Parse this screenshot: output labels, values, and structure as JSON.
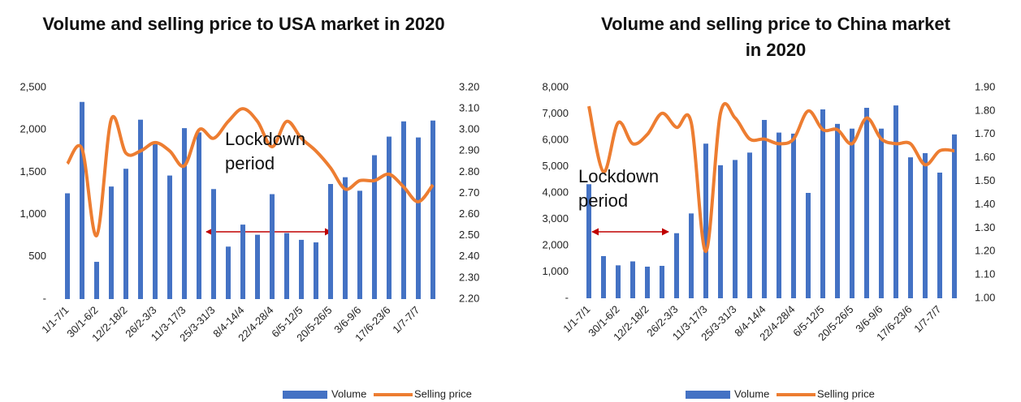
{
  "chart_data": [
    {
      "type": "bar_line",
      "title": "Volume and selling price to USA market in 2020",
      "annotation": "Lockdown period",
      "categories": [
        "1/1-7/1",
        null,
        "30/1-6/2",
        null,
        "12/2-18/2",
        null,
        "26/2-3/3",
        null,
        "11/3-17/3",
        null,
        "25/3-31/3",
        null,
        "8/4-14/4",
        null,
        "22/4-28/4",
        null,
        "6/5-12/5",
        null,
        "20/5-26/5",
        null,
        "3/6-9/6",
        null,
        "17/6-23/6",
        null,
        "1/7-7/7",
        null
      ],
      "series": [
        {
          "name": "Volume",
          "color": "#4472c4",
          "values": [
            1250,
            2330,
            440,
            1330,
            1540,
            2120,
            1830,
            1460,
            2020,
            1970,
            1300,
            620,
            880,
            760,
            1240,
            780,
            700,
            670,
            1360,
            1440,
            1280,
            1700,
            1920,
            2100,
            1910,
            2110
          ]
        },
        {
          "name": "Selling price",
          "color": "#ed7d31",
          "axis": "y2",
          "values": [
            2.84,
            2.91,
            2.5,
            3.05,
            2.89,
            2.9,
            2.94,
            2.9,
            2.83,
            3.0,
            2.96,
            3.04,
            3.1,
            3.04,
            2.92,
            3.04,
            2.96,
            2.9,
            2.82,
            2.72,
            2.76,
            2.76,
            2.79,
            2.73,
            2.66,
            2.74
          ]
        }
      ],
      "ylim": [
        0,
        2500
      ],
      "yticks": [
        {
          "value": 0,
          "label": "-"
        },
        500,
        {
          "value": 1000,
          "label": "1,000"
        },
        {
          "value": 1500,
          "label": "1,500"
        },
        {
          "value": 2000,
          "label": "2,000"
        },
        {
          "value": 2500,
          "label": "2,500"
        }
      ],
      "y2lim": [
        2.2,
        3.2
      ],
      "y2ticks": [
        {
          "value": 2.2,
          "label": "2.20"
        },
        {
          "value": 2.3,
          "label": "2.30"
        },
        {
          "value": 2.4,
          "label": "2.40"
        },
        {
          "value": 2.5,
          "label": "2.50"
        },
        {
          "value": 2.6,
          "label": "2.60"
        },
        {
          "value": 2.7,
          "label": "2.70"
        },
        {
          "value": 2.8,
          "label": "2.80"
        },
        {
          "value": 2.9,
          "label": "2.90"
        },
        {
          "value": 3.0,
          "label": "3.00"
        },
        {
          "value": 3.1,
          "label": "3.10"
        },
        {
          "value": 3.2,
          "label": "3.20"
        }
      ],
      "legend": "bottom",
      "grid": false
    },
    {
      "type": "bar_line",
      "title": "Volume and selling price to China market in 2020",
      "annotation": "Lockdown period",
      "categories": [
        "1/1-7/1",
        null,
        "30/1-6/2",
        null,
        "12/2-18/2",
        null,
        "26/2-3/3",
        null,
        "11/3-17/3",
        null,
        "25/3-31/3",
        null,
        "8/4-14/4",
        null,
        "22/4-28/4",
        null,
        "6/5-12/5",
        null,
        "20/5-26/5",
        null,
        "3/6-9/6",
        null,
        "17/6-23/6",
        null,
        "1/7-7/7",
        null
      ],
      "series": [
        {
          "name": "Volume",
          "color": "#4472c4",
          "values": [
            4330,
            1600,
            1250,
            1400,
            1200,
            1230,
            2470,
            3220,
            5870,
            5050,
            5250,
            5530,
            6770,
            6290,
            6250,
            4000,
            7170,
            6620,
            6440,
            7230,
            6440,
            7320,
            5350,
            5510,
            4770,
            6220
          ]
        },
        {
          "name": "Selling price",
          "color": "#ed7d31",
          "axis": "y2",
          "values": [
            1.82,
            1.54,
            1.75,
            1.66,
            1.7,
            1.79,
            1.73,
            1.75,
            1.2,
            1.79,
            1.77,
            1.68,
            1.68,
            1.66,
            1.68,
            1.8,
            1.72,
            1.72,
            1.66,
            1.77,
            1.68,
            1.66,
            1.66,
            1.57,
            1.63,
            1.63
          ]
        }
      ],
      "ylim": [
        0,
        8000
      ],
      "yticks": [
        {
          "value": 0,
          "label": "-"
        },
        {
          "value": 1000,
          "label": "1,000"
        },
        {
          "value": 2000,
          "label": "2,000"
        },
        {
          "value": 3000,
          "label": "3,000"
        },
        {
          "value": 4000,
          "label": "4,000"
        },
        {
          "value": 5000,
          "label": "5,000"
        },
        {
          "value": 6000,
          "label": "6,000"
        },
        {
          "value": 7000,
          "label": "7,000"
        },
        {
          "value": 8000,
          "label": "8,000"
        }
      ],
      "y2lim": [
        1.0,
        1.9
      ],
      "y2ticks": [
        {
          "value": 1.0,
          "label": "1.00"
        },
        {
          "value": 1.1,
          "label": "1.10"
        },
        {
          "value": 1.2,
          "label": "1.20"
        },
        {
          "value": 1.3,
          "label": "1.30"
        },
        {
          "value": 1.4,
          "label": "1.40"
        },
        {
          "value": 1.5,
          "label": "1.50"
        },
        {
          "value": 1.6,
          "label": "1.60"
        },
        {
          "value": 1.7,
          "label": "1.70"
        },
        {
          "value": 1.8,
          "label": "1.80"
        },
        {
          "value": 1.9,
          "label": "1.90"
        }
      ],
      "legend": "bottom",
      "grid": false
    }
  ]
}
